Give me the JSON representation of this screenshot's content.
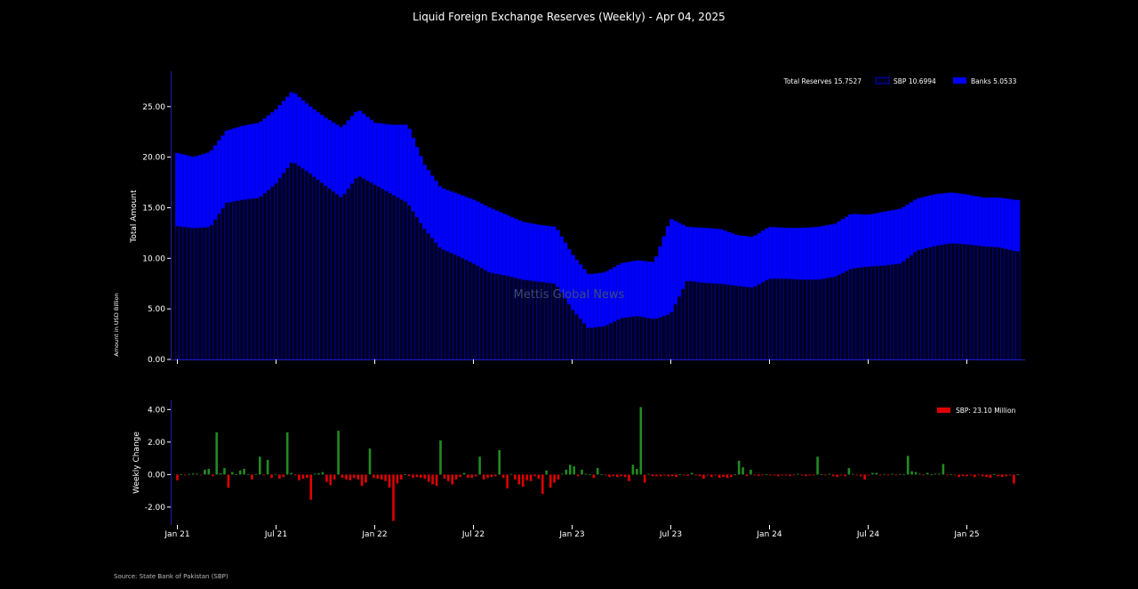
{
  "title": "Liquid Foreign Exchange Reserves (Weekly) - Apr 04, 2025",
  "watermark": "Mettis Global News",
  "source": "Source: State Bank of Pakistan (SBP)",
  "colors": {
    "background": "#000000",
    "banks": "#0000ff",
    "sbp_edge": "#0000cc",
    "sbp_fill": "#000022",
    "positive": "#228b22",
    "negative": "#e00000",
    "watermark": "#3c4a78"
  },
  "chart_data": [
    {
      "type": "bar",
      "subtype": "stacked",
      "ylabel": "Total Amount",
      "ylabel_secondary": "Amount in USD Billion",
      "ylim": [
        0,
        28.5
      ],
      "yticks": [
        "0.00",
        "5.00",
        "10.00",
        "15.00",
        "20.00",
        "25.00"
      ],
      "legend": {
        "position": "top-right",
        "total_label": "Total Reserves 15.7527",
        "sbp_label": "SBP 10.6994",
        "banks_label": "Banks 5.0533"
      },
      "x_start": "2021-01-01",
      "x_end": "2025-04-04",
      "x_unit": "months",
      "series": [
        {
          "name": "SBP",
          "anchors": [
            [
              0,
              13.2
            ],
            [
              1,
              13.0
            ],
            [
              2,
              13.1
            ],
            [
              3,
              15.5
            ],
            [
              4,
              15.8
            ],
            [
              5,
              16.0
            ],
            [
              6,
              17.4
            ],
            [
              7,
              19.6
            ],
            [
              8,
              18.5
            ],
            [
              9,
              17.2
            ],
            [
              10,
              16.0
            ],
            [
              11,
              18.2
            ],
            [
              12,
              17.3
            ],
            [
              13,
              16.4
            ],
            [
              14,
              15.5
            ],
            [
              15,
              13.0
            ],
            [
              16,
              11.0
            ],
            [
              17,
              10.3
            ],
            [
              18,
              9.5
            ],
            [
              19,
              8.6
            ],
            [
              20,
              8.3
            ],
            [
              21,
              7.9
            ],
            [
              22,
              7.7
            ],
            [
              23,
              7.5
            ],
            [
              24,
              5.0
            ],
            [
              25,
              3.1
            ],
            [
              26,
              3.3
            ],
            [
              27,
              4.1
            ],
            [
              28,
              4.3
            ],
            [
              29,
              4.0
            ],
            [
              30,
              4.5
            ],
            [
              31,
              7.8
            ],
            [
              32,
              7.6
            ],
            [
              33,
              7.5
            ],
            [
              34,
              7.3
            ],
            [
              35,
              7.1
            ],
            [
              36,
              8.0
            ],
            [
              37,
              8.0
            ],
            [
              38,
              7.9
            ],
            [
              39,
              7.9
            ],
            [
              40,
              8.2
            ],
            [
              41,
              9.0
            ],
            [
              42,
              9.2
            ],
            [
              43,
              9.3
            ],
            [
              44,
              9.5
            ],
            [
              45,
              10.8
            ],
            [
              46,
              11.2
            ],
            [
              47,
              11.5
            ],
            [
              48,
              11.4
            ],
            [
              49,
              11.2
            ],
            [
              50,
              11.1
            ],
            [
              51,
              10.7
            ]
          ]
        },
        {
          "name": "Banks",
          "anchors": [
            [
              0,
              7.2
            ],
            [
              1,
              7.0
            ],
            [
              2,
              7.4
            ],
            [
              3,
              7.1
            ],
            [
              4,
              7.3
            ],
            [
              5,
              7.4
            ],
            [
              6,
              7.3
            ],
            [
              7,
              6.9
            ],
            [
              8,
              6.6
            ],
            [
              9,
              6.7
            ],
            [
              10,
              6.9
            ],
            [
              11,
              6.5
            ],
            [
              12,
              6.1
            ],
            [
              13,
              6.8
            ],
            [
              14,
              7.7
            ],
            [
              15,
              6.3
            ],
            [
              16,
              6.0
            ],
            [
              17,
              6.1
            ],
            [
              18,
              6.3
            ],
            [
              19,
              6.4
            ],
            [
              20,
              6.0
            ],
            [
              21,
              5.7
            ],
            [
              22,
              5.6
            ],
            [
              23,
              5.6
            ],
            [
              24,
              5.4
            ],
            [
              25,
              5.3
            ],
            [
              26,
              5.3
            ],
            [
              27,
              5.4
            ],
            [
              28,
              5.5
            ],
            [
              29,
              5.6
            ],
            [
              30,
              9.4
            ],
            [
              31,
              5.3
            ],
            [
              32,
              5.4
            ],
            [
              33,
              5.4
            ],
            [
              34,
              5.0
            ],
            [
              35,
              5.0
            ],
            [
              36,
              5.1
            ],
            [
              37,
              5.0
            ],
            [
              38,
              5.1
            ],
            [
              39,
              5.2
            ],
            [
              40,
              5.2
            ],
            [
              41,
              5.4
            ],
            [
              42,
              5.1
            ],
            [
              43,
              5.3
            ],
            [
              44,
              5.4
            ],
            [
              45,
              5.1
            ],
            [
              46,
              5.1
            ],
            [
              47,
              5.0
            ],
            [
              48,
              4.9
            ],
            [
              49,
              4.8
            ],
            [
              50,
              4.9
            ],
            [
              51,
              5.05
            ]
          ]
        }
      ],
      "xticks": [
        "Jan 21",
        "Jul 21",
        "Jan 22",
        "Jul 22",
        "Jan 23",
        "Jul 23",
        "Jan 24",
        "Jul 24",
        "Jan 25"
      ]
    },
    {
      "type": "bar",
      "ylabel": "Weekly Change",
      "ylim": [
        -3.1,
        4.4
      ],
      "yticks": [
        "-2.00",
        "0.00",
        "2.00",
        "4.00"
      ],
      "legend": {
        "position": "top-right",
        "label": "SBP: 23.10 Million"
      },
      "series": [
        {
          "name": "Weekly Change",
          "values": [
            -0.35,
            0.02,
            -0.05,
            0.03,
            0.06,
            0.05,
            -0.03,
            0.3,
            0.35,
            -0.1,
            2.6,
            0.08,
            0.4,
            -0.8,
            0.15,
            0.02,
            0.25,
            0.35,
            0.02,
            -0.3,
            0.03,
            1.1,
            -0.05,
            0.9,
            -0.2,
            0.03,
            -0.25,
            -0.15,
            2.6,
            0.1,
            -0.05,
            -0.35,
            -0.25,
            -0.2,
            -1.55,
            0.05,
            0.08,
            0.15,
            -0.45,
            -0.65,
            -0.3,
            2.7,
            -0.2,
            -0.3,
            -0.35,
            -0.2,
            -0.3,
            -0.7,
            -0.5,
            1.6,
            -0.2,
            -0.25,
            -0.3,
            -0.4,
            -0.8,
            -2.85,
            -0.55,
            -0.3,
            0.02,
            -0.1,
            -0.2,
            -0.15,
            -0.2,
            -0.25,
            -0.45,
            -0.6,
            -0.7,
            2.1,
            -0.25,
            -0.4,
            -0.6,
            -0.3,
            -0.15,
            0.1,
            -0.2,
            -0.2,
            -0.1,
            1.1,
            -0.3,
            -0.2,
            -0.15,
            -0.1,
            1.5,
            -0.2,
            -0.85,
            0.03,
            -0.3,
            -0.6,
            -0.75,
            -0.35,
            -0.4,
            -0.1,
            -0.25,
            -1.2,
            0.25,
            -0.8,
            -0.5,
            -0.3,
            0.05,
            0.3,
            0.6,
            0.5,
            -0.1,
            0.3,
            0.05,
            0.02,
            -0.2,
            0.4,
            0.02,
            -0.05,
            -0.15,
            -0.1,
            -0.15,
            -0.1,
            -0.15,
            -0.4,
            0.6,
            0.35,
            4.15,
            -0.5,
            0.03,
            -0.1,
            -0.1,
            -0.1,
            -0.05,
            -0.1,
            -0.1,
            -0.15,
            0.02,
            -0.05,
            -0.08,
            0.1,
            -0.05,
            -0.1,
            -0.25,
            -0.05,
            -0.15,
            -0.05,
            -0.2,
            -0.15,
            -0.2,
            -0.15,
            0.02,
            0.85,
            0.45,
            -0.1,
            0.3,
            -0.05,
            -0.08,
            -0.05,
            0.02,
            -0.05,
            -0.05,
            -0.1,
            -0.05,
            -0.05,
            -0.1,
            -0.05,
            0.05,
            -0.05,
            -0.1,
            -0.05,
            -0.05,
            1.1,
            0.02,
            -0.05,
            0.05,
            -0.1,
            -0.15,
            -0.05,
            -0.1,
            0.4,
            0.03,
            -0.05,
            -0.1,
            -0.3,
            -0.05,
            0.1,
            0.1,
            -0.05,
            0.03,
            -0.05,
            0.05,
            -0.05,
            0.03,
            0.02,
            1.15,
            0.2,
            0.15,
            0.05,
            -0.05,
            0.1,
            0.02,
            0.05,
            0.05,
            0.65,
            -0.05,
            0.02,
            -0.05,
            -0.15,
            -0.1,
            -0.1,
            -0.05,
            -0.15,
            -0.05,
            -0.1,
            -0.15,
            -0.2,
            0.02,
            -0.1,
            -0.15,
            -0.1,
            -0.05,
            -0.55,
            0.02
          ]
        }
      ],
      "xticks": [
        "Jan 21",
        "Jul 21",
        "Jan 22",
        "Jul 22",
        "Jan 23",
        "Jul 23",
        "Jan 24",
        "Jul 24",
        "Jan 25"
      ]
    }
  ]
}
